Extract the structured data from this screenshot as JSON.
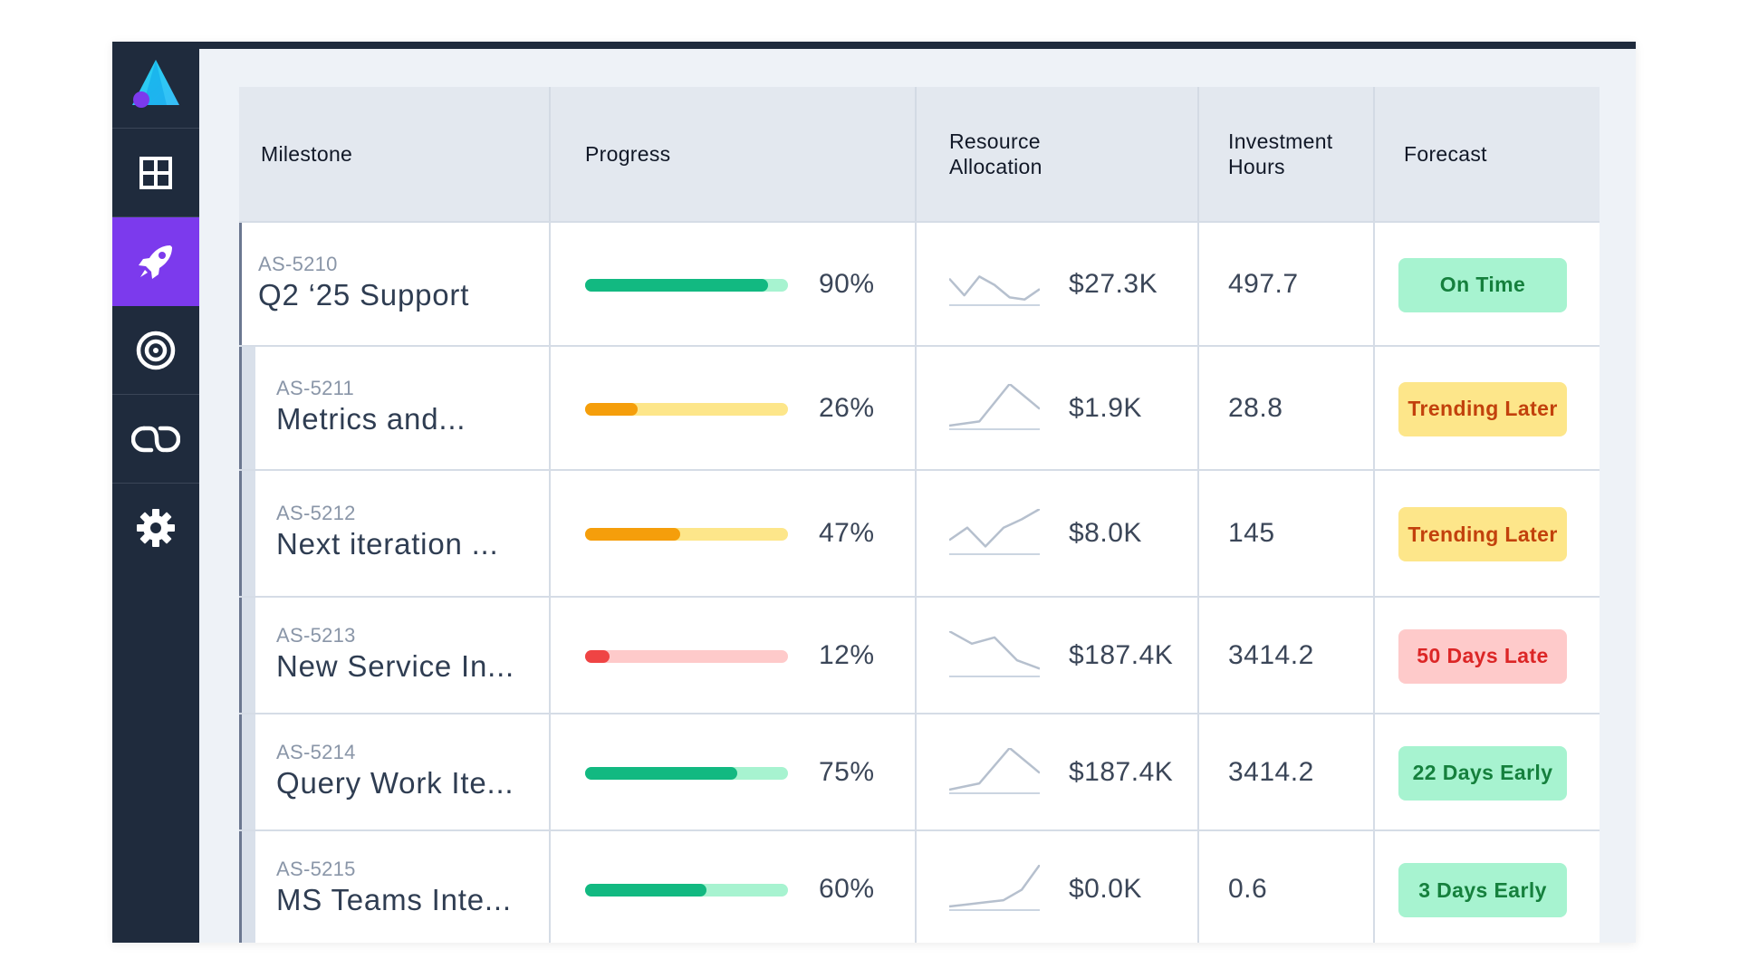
{
  "colors": {
    "sidebar_bg": "#1f2b3d",
    "sidebar_active": "#7c3aed",
    "green": "#12b981",
    "green_light": "#a7f3d0",
    "orange": "#f59e0b",
    "orange_light": "#fde68a",
    "red": "#ef4444",
    "red_light": "#fecaca"
  },
  "sidebar": {
    "items": [
      {
        "icon": "grid-icon",
        "active": false
      },
      {
        "icon": "rocket-icon",
        "active": true
      },
      {
        "icon": "target-icon",
        "active": false
      },
      {
        "icon": "infinity-loop-icon",
        "active": false
      },
      {
        "icon": "gear-icon",
        "active": false
      }
    ]
  },
  "table": {
    "headers": {
      "milestone": "Milestone",
      "progress": "Progress",
      "resource_1": "Resource",
      "resource_2": "Allocation",
      "investment_1": "Investment",
      "investment_2": "Hours",
      "forecast": "Forecast"
    },
    "rows": [
      {
        "id": "AS-5210",
        "title": "Q2 ‘25 Support",
        "progress": 90,
        "progress_label": "90%",
        "status_color": "green",
        "amount": "$27.3K",
        "hours": "497.7",
        "forecast": "On Time",
        "forecast_color": "green",
        "trend": [
          0.55,
          0.15,
          0.6,
          0.4,
          0.1,
          0.05,
          0.3
        ]
      },
      {
        "id": "AS-5211",
        "title": "Metrics and...",
        "progress": 26,
        "progress_label": "26%",
        "status_color": "orange",
        "amount": "$1.9K",
        "hours": "28.8",
        "forecast": "Trending Later",
        "forecast_color": "orange",
        "trend": [
          0.0,
          0.1,
          1.0,
          0.4
        ]
      },
      {
        "id": "AS-5212",
        "title": "Next iteration ...",
        "progress": 47,
        "progress_label": "47%",
        "status_color": "orange",
        "amount": "$8.0K",
        "hours": "145",
        "forecast": "Trending Later",
        "forecast_color": "orange",
        "trend": [
          0.25,
          0.55,
          0.1,
          0.55,
          0.75,
          1.0
        ]
      },
      {
        "id": "AS-5213",
        "title": "New Service In...",
        "progress": 12,
        "progress_label": "12%",
        "status_color": "red",
        "amount": "$187.4K",
        "hours": "3414.2",
        "forecast": "50 Days Late",
        "forecast_color": "red",
        "trend": [
          1.0,
          0.7,
          0.85,
          0.3,
          0.1
        ]
      },
      {
        "id": "AS-5214",
        "title": "Query Work Ite...",
        "progress": 75,
        "progress_label": "75%",
        "status_color": "green",
        "amount": "$187.4K",
        "hours": "3414.2",
        "forecast": "22 Days Early",
        "forecast_color": "green",
        "trend": [
          0.0,
          0.15,
          1.0,
          0.4
        ]
      },
      {
        "id": "AS-5215",
        "title": "MS Teams Inte...",
        "progress": 60,
        "progress_label": "60%",
        "status_color": "green",
        "amount": "$0.0K",
        "hours": "0.6",
        "forecast": "3 Days Early",
        "forecast_color": "green",
        "trend": [
          0.0,
          0.05,
          0.1,
          0.15,
          0.4,
          1.0
        ]
      }
    ]
  }
}
